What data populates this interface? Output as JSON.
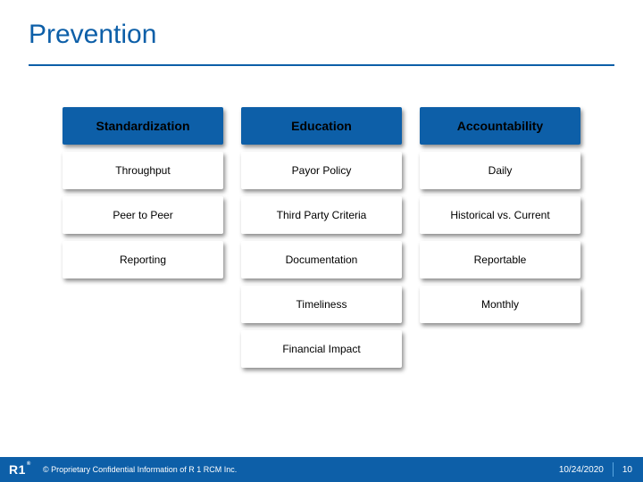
{
  "colors": {
    "brand_blue": "#0d5fa8",
    "footer_blue": "#0d5fa8",
    "title_color": "#0d5fa8",
    "rule_color": "#0d5fa8",
    "header_bg": "#0d5fa8",
    "header_text": "#000000",
    "cell_bg": "#ffffff",
    "shadow": "rgba(0,0,0,0.45)",
    "divider": "#5aa6e0"
  },
  "title": "Prevention",
  "headers": [
    "Standardization",
    "Education",
    "Accountability"
  ],
  "rows": [
    [
      "Throughput",
      "Payor Policy",
      "Daily"
    ],
    [
      "Peer to Peer",
      "Third Party Criteria",
      "Historical vs. Current"
    ],
    [
      "Reporting",
      "Documentation",
      "Reportable"
    ],
    [
      "",
      "Timeliness",
      "Monthly"
    ],
    [
      "",
      "Financial Impact",
      ""
    ]
  ],
  "footer": {
    "logo_text": "R1",
    "copyright": "© Proprietary Confidential Information of R 1 RCM Inc.",
    "date": "10/24/2020",
    "page": "10"
  }
}
